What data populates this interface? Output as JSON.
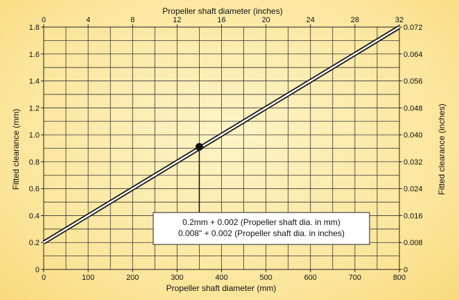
{
  "chart_data": {
    "type": "line",
    "title": "",
    "grid": true,
    "xlabel": "Propeller shaft diameter (mm)",
    "ylabel": "Fitted clearance (mm)",
    "x2label": "Propeller shaft diameter (inches)",
    "y2label": "Fitted clearance (inches)",
    "xlim": [
      0,
      800
    ],
    "ylim": [
      0,
      1.8
    ],
    "x2lim": [
      0,
      32
    ],
    "y2lim": [
      0,
      0.072
    ],
    "xticks": [
      0,
      100,
      200,
      300,
      400,
      500,
      600,
      700,
      800
    ],
    "yticks": [
      "0",
      "0.2",
      "0.4",
      "0.6",
      "0.8",
      "1.0",
      "1.2",
      "1.4",
      "1.6",
      "1.8"
    ],
    "x2ticks": [
      0,
      4,
      8,
      12,
      16,
      20,
      24,
      28,
      32
    ],
    "y2ticks": [
      "0",
      "0.008",
      "0.016",
      "0.024",
      "0.032",
      "0.040",
      "0.048",
      "0.056",
      "0.064",
      "0.072"
    ],
    "series": [
      {
        "x": [
          0,
          800
        ],
        "y": [
          0.2,
          1.8
        ]
      }
    ],
    "marker": {
      "x": 350,
      "y": 0.9
    },
    "annotation": {
      "lines": [
        "0.2mm + 0.002 (Propeller shaft dia. in mm)",
        "0.008\" + 0.002 (Propeller shaft dia. in inches)"
      ]
    },
    "colors": {
      "line_outer": "#1a1a1a",
      "line_inner": "#ffffff",
      "grid": "#333333",
      "background": "#fbe59a"
    }
  }
}
